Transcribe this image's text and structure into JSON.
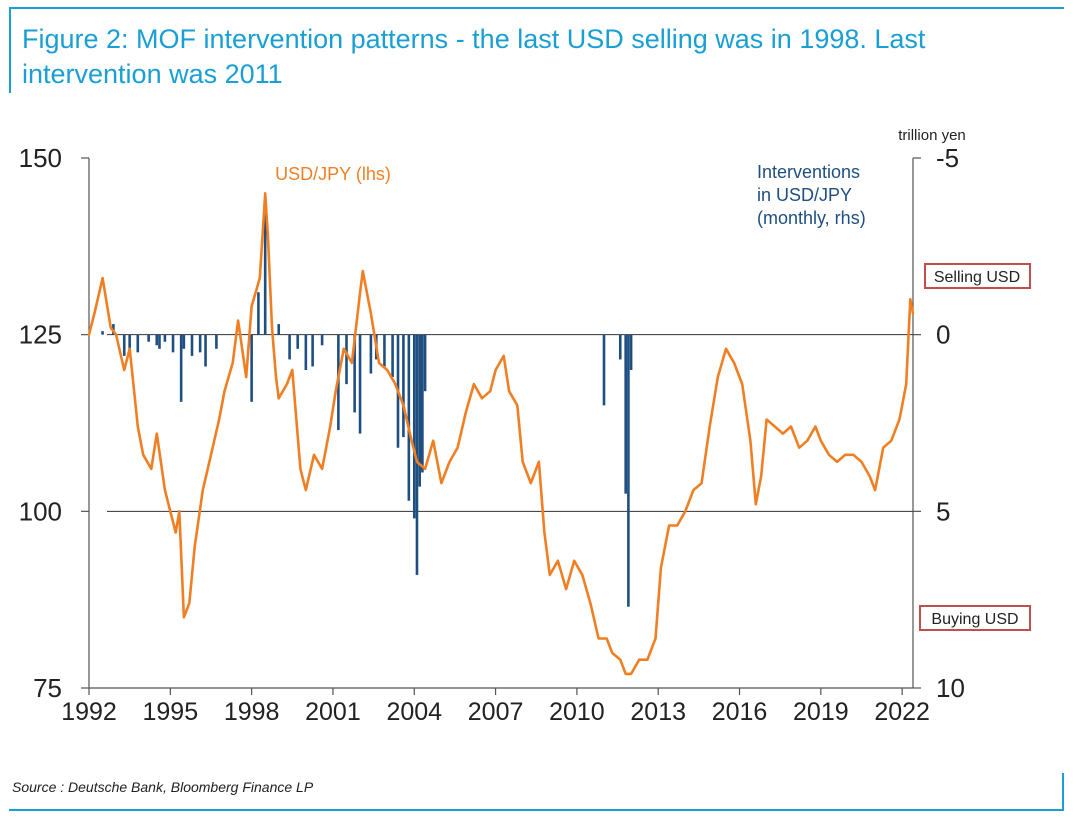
{
  "title": "Figure 2: MOF intervention patterns - the last USD selling was in 1998. Last intervention was 2011",
  "source": "Source : Deutsche Bank, Bloomberg Finance LP",
  "colors": {
    "accent": "#1a9fd4",
    "usdjpy": "#f07f24",
    "intervention": "#1f4e80",
    "box_border": "#c0504d"
  },
  "chart_data": {
    "type": "line",
    "title": "",
    "x_ticks": [
      "1992",
      "1995",
      "1998",
      "2001",
      "2004",
      "2007",
      "2010",
      "2013",
      "2016",
      "2019",
      "2022"
    ],
    "xlim": [
      1992,
      2022.4
    ],
    "left_axis": {
      "ticks": [
        "150",
        "125",
        "100",
        "75"
      ],
      "range": [
        75,
        150
      ]
    },
    "right_axis": {
      "unit": "trillion yen",
      "ticks": [
        "-5",
        "0",
        "5",
        "10"
      ],
      "range": [
        -5,
        10
      ],
      "inverted": true
    },
    "labels": {
      "usdjpy": "USD/JPY (lhs)",
      "interventions": [
        "Interventions",
        "in USD/JPY",
        "(monthly, rhs)"
      ],
      "selling": "Selling USD",
      "buying": "Buying USD"
    },
    "series": [
      {
        "name": "USD/JPY (lhs)",
        "axis": "left",
        "x": [
          1992.0,
          1992.2,
          1992.5,
          1992.8,
          1993.0,
          1993.3,
          1993.5,
          1993.8,
          1994.0,
          1994.3,
          1994.5,
          1994.8,
          1995.0,
          1995.2,
          1995.33,
          1995.5,
          1995.7,
          1995.9,
          1996.2,
          1996.5,
          1996.8,
          1997.0,
          1997.3,
          1997.5,
          1997.8,
          1998.0,
          1998.3,
          1998.5,
          1998.6,
          1998.75,
          1998.9,
          1999.0,
          1999.3,
          1999.5,
          1999.8,
          2000.0,
          2000.3,
          2000.6,
          2000.9,
          2001.1,
          2001.4,
          2001.7,
          2002.0,
          2002.1,
          2002.4,
          2002.7,
          2003.0,
          2003.3,
          2003.6,
          2003.9,
          2004.1,
          2004.4,
          2004.7,
          2005.0,
          2005.3,
          2005.6,
          2005.9,
          2006.2,
          2006.5,
          2006.8,
          2007.0,
          2007.3,
          2007.5,
          2007.8,
          2008.0,
          2008.3,
          2008.6,
          2008.8,
          2009.0,
          2009.3,
          2009.6,
          2009.9,
          2010.2,
          2010.5,
          2010.8,
          2011.1,
          2011.3,
          2011.6,
          2011.8,
          2012.0,
          2012.3,
          2012.6,
          2012.9,
          2013.1,
          2013.4,
          2013.7,
          2014.0,
          2014.3,
          2014.6,
          2014.9,
          2015.2,
          2015.5,
          2015.8,
          2016.1,
          2016.4,
          2016.6,
          2016.8,
          2017.0,
          2017.3,
          2017.6,
          2017.9,
          2018.2,
          2018.5,
          2018.8,
          2019.0,
          2019.3,
          2019.6,
          2019.9,
          2020.2,
          2020.5,
          2020.8,
          2021.0,
          2021.3,
          2021.6,
          2021.9,
          2022.0,
          2022.15,
          2022.3,
          2022.4
        ],
        "values": [
          125,
          128,
          133,
          126,
          125,
          120,
          123,
          112,
          108,
          106,
          111,
          103,
          100,
          97,
          100,
          85,
          87,
          95,
          103,
          108,
          113,
          117,
          121,
          127,
          119,
          129,
          133,
          145,
          139,
          126,
          119,
          116,
          118,
          120,
          106,
          103,
          108,
          106,
          112,
          117,
          123,
          121,
          131,
          134,
          128,
          121,
          120,
          118,
          115,
          110,
          107,
          106,
          110,
          104,
          107,
          109,
          114,
          118,
          116,
          117,
          120,
          122,
          117,
          115,
          107,
          104,
          107,
          97,
          91,
          93,
          89,
          93,
          91,
          87,
          82,
          82,
          80,
          79,
          77,
          77,
          79,
          79,
          82,
          92,
          98,
          98,
          100,
          103,
          104,
          112,
          119,
          123,
          121,
          118,
          110,
          101,
          105,
          113,
          112,
          111,
          112,
          109,
          110,
          112,
          110,
          108,
          107,
          108,
          108,
          107,
          105,
          103,
          109,
          110,
          113,
          115,
          118,
          130,
          128
        ]
      },
      {
        "name": "Interventions in USD/JPY (monthly, rhs)",
        "axis": "right",
        "type": "bar",
        "x": [
          1992.5,
          1992.9,
          1993.3,
          1993.5,
          1993.8,
          1994.2,
          1994.5,
          1994.6,
          1994.8,
          1995.1,
          1995.4,
          1995.5,
          1995.8,
          1996.1,
          1996.3,
          1996.7,
          1998.0,
          1998.25,
          1998.5,
          1999.0,
          1999.4,
          1999.7,
          2000.0,
          2000.25,
          2000.6,
          2001.2,
          2001.5,
          2001.8,
          2002.0,
          2002.4,
          2002.6,
          2002.9,
          2003.2,
          2003.4,
          2003.6,
          2003.8,
          2004.0,
          2004.1,
          2004.2,
          2004.25,
          2004.3,
          2004.4,
          2011.0,
          2011.6,
          2011.8,
          2011.9,
          2012.0
        ],
        "values": [
          -0.1,
          -0.3,
          0.6,
          0.5,
          0.5,
          0.2,
          0.3,
          0.4,
          0.2,
          0.5,
          1.9,
          0.4,
          0.6,
          0.5,
          0.9,
          0.4,
          1.9,
          -1.2,
          -3.5,
          -0.3,
          0.7,
          0.4,
          1.0,
          0.9,
          0.3,
          2.7,
          1.4,
          2.2,
          2.8,
          1.1,
          0.7,
          0.9,
          1.2,
          3.2,
          2.9,
          4.7,
          5.2,
          6.8,
          4.3,
          3.8,
          3.9,
          1.6,
          2.0,
          0.7,
          4.5,
          7.7,
          1.0
        ]
      }
    ]
  }
}
